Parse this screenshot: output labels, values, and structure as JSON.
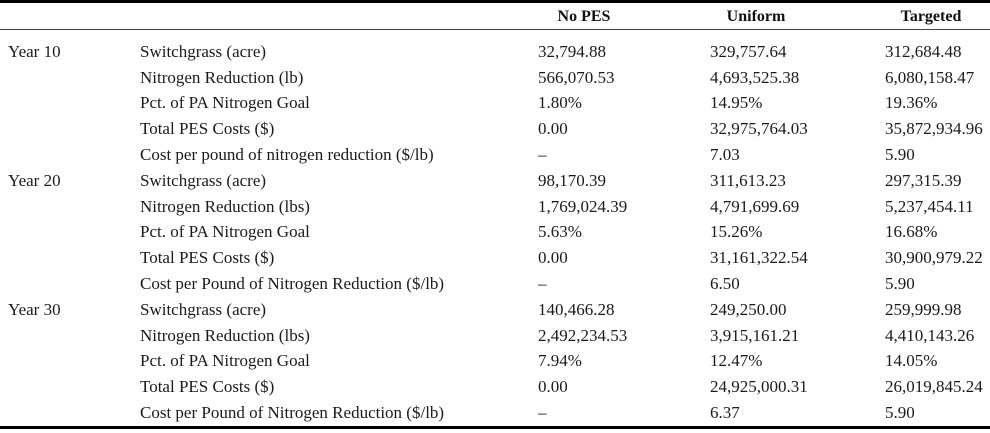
{
  "header": {
    "columns": [
      "No PES",
      "Uniform",
      "Targeted"
    ]
  },
  "table": {
    "groups": [
      {
        "year": "Year 10",
        "rows": [
          {
            "label": "Switchgrass (acre)",
            "values": [
              "32,794.88",
              "329,757.64",
              "312,684.48"
            ]
          },
          {
            "label": "Nitrogen Reduction (lb)",
            "values": [
              "566,070.53",
              "4,693,525.38",
              "6,080,158.47"
            ]
          },
          {
            "label": "Pct. of PA Nitrogen Goal",
            "values": [
              "1.80%",
              "14.95%",
              "19.36%"
            ]
          },
          {
            "label": "Total PES Costs ($)",
            "values": [
              "0.00",
              "32,975,764.03",
              "35,872,934.96"
            ]
          },
          {
            "label": "Cost per pound of nitrogen reduction ($/lb)",
            "values": [
              "–",
              "7.03",
              "5.90"
            ]
          }
        ]
      },
      {
        "year": "Year 20",
        "rows": [
          {
            "label": "Switchgrass (acre)",
            "values": [
              "98,170.39",
              "311,613.23",
              "297,315.39"
            ]
          },
          {
            "label": "Nitrogen Reduction (lbs)",
            "values": [
              "1,769,024.39",
              "4,791,699.69",
              "5,237,454.11"
            ]
          },
          {
            "label": "Pct. of PA Nitrogen Goal",
            "values": [
              "5.63%",
              "15.26%",
              "16.68%"
            ]
          },
          {
            "label": "Total PES Costs ($)",
            "values": [
              "0.00",
              "31,161,322.54",
              "30,900,979.22"
            ]
          },
          {
            "label": "Cost per Pound of Nitrogen Reduction ($/lb)",
            "values": [
              "–",
              "6.50",
              "5.90"
            ]
          }
        ]
      },
      {
        "year": "Year 30",
        "rows": [
          {
            "label": "Switchgrass (acre)",
            "values": [
              "140,466.28",
              "249,250.00",
              "259,999.98"
            ]
          },
          {
            "label": "Nitrogen Reduction (lbs)",
            "values": [
              "2,492,234.53",
              "3,915,161.21",
              "4,410,143.26"
            ]
          },
          {
            "label": "Pct. of PA Nitrogen Goal",
            "values": [
              "7.94%",
              "12.47%",
              "14.05%"
            ]
          },
          {
            "label": "Total PES Costs ($)",
            "values": [
              "0.00",
              "24,925,000.31",
              "26,019,845.24"
            ]
          },
          {
            "label": "Cost per Pound of Nitrogen Reduction ($/lb)",
            "values": [
              "–",
              "6.37",
              "5.90"
            ]
          }
        ]
      }
    ]
  },
  "colors": {
    "text": "#1a1a1a",
    "rule_heavy": "#000000",
    "rule_light": "#444444",
    "background": "#ffffff"
  }
}
